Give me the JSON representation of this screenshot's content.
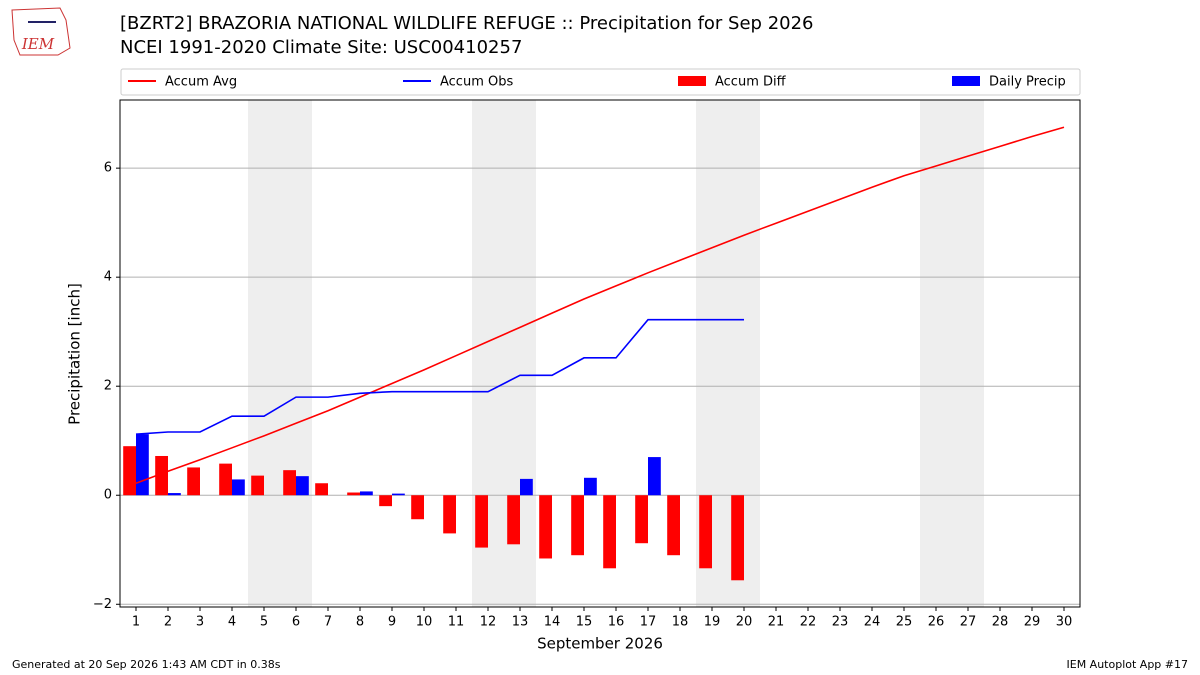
{
  "chart_data": {
    "type": "bar",
    "title": "[BZRT2] BRAZORIA NATIONAL WILDLIFE REFUGE :: Precipitation for Sep 2026",
    "subtitle": "NCEI 1991-2020 Climate Site: USC00410257",
    "logo": "IEM",
    "xlabel": "September 2026",
    "ylabel": "Precipitation [inch]",
    "footer_left": "Generated at 20 Sep 2026 1:43 AM CDT in 0.38s",
    "footer_right": "IEM Autoplot App #17",
    "x": [
      1,
      2,
      3,
      4,
      5,
      6,
      7,
      8,
      9,
      10,
      11,
      12,
      13,
      14,
      15,
      16,
      17,
      18,
      19,
      20,
      21,
      22,
      23,
      24,
      25,
      26,
      27,
      28,
      29,
      30
    ],
    "xlim": [
      0.5,
      30.5
    ],
    "xticks": [
      1,
      2,
      3,
      4,
      5,
      6,
      7,
      8,
      9,
      10,
      11,
      12,
      13,
      14,
      15,
      16,
      17,
      18,
      19,
      20,
      21,
      22,
      23,
      24,
      25,
      26,
      27,
      28,
      29,
      30
    ],
    "ylim": [
      -2.05,
      7.25
    ],
    "yticks": [
      {
        "value": -2,
        "label": "−2"
      },
      0,
      2,
      4,
      6
    ],
    "grid": true,
    "legend": "top",
    "series": [
      {
        "name": "Accum Avg",
        "type": "line",
        "color": "#ff0000",
        "values": [
          0.22,
          0.44,
          0.65,
          0.87,
          1.09,
          1.32,
          1.55,
          1.8,
          2.05,
          2.3,
          2.56,
          2.82,
          3.08,
          3.34,
          3.6,
          3.84,
          4.08,
          4.31,
          4.54,
          4.77,
          4.99,
          5.21,
          5.43,
          5.65,
          5.86,
          6.04,
          6.22,
          6.4,
          6.58,
          6.75
        ]
      },
      {
        "name": "Accum Obs",
        "type": "line",
        "color": "#0000ff",
        "values": [
          1.12,
          1.16,
          1.16,
          1.45,
          1.45,
          1.8,
          1.8,
          1.87,
          1.9,
          1.9,
          1.9,
          1.9,
          2.2,
          2.2,
          2.52,
          2.52,
          3.22,
          3.22,
          3.22,
          3.22,
          null,
          null,
          null,
          null,
          null,
          null,
          null,
          null,
          null,
          null
        ]
      },
      {
        "name": "Accum Diff",
        "type": "bar",
        "color": "#ff0000",
        "values": [
          0.9,
          0.72,
          0.51,
          0.58,
          0.36,
          0.46,
          0.22,
          0.05,
          -0.2,
          -0.44,
          -0.7,
          -0.96,
          -0.9,
          -1.16,
          -1.1,
          -1.34,
          -0.88,
          -1.1,
          -1.34,
          -1.56,
          null,
          null,
          null,
          null,
          null,
          null,
          null,
          null,
          null,
          null
        ]
      },
      {
        "name": "Daily Precip",
        "type": "bar",
        "color": "#0000ff",
        "values": [
          1.12,
          0.04,
          0,
          0.29,
          0,
          0.35,
          0,
          0.07,
          0.03,
          0,
          0,
          0,
          0.3,
          0,
          0.32,
          0,
          0.7,
          0,
          0,
          0,
          null,
          null,
          null,
          null,
          null,
          null,
          null,
          null,
          null,
          null
        ]
      }
    ]
  }
}
